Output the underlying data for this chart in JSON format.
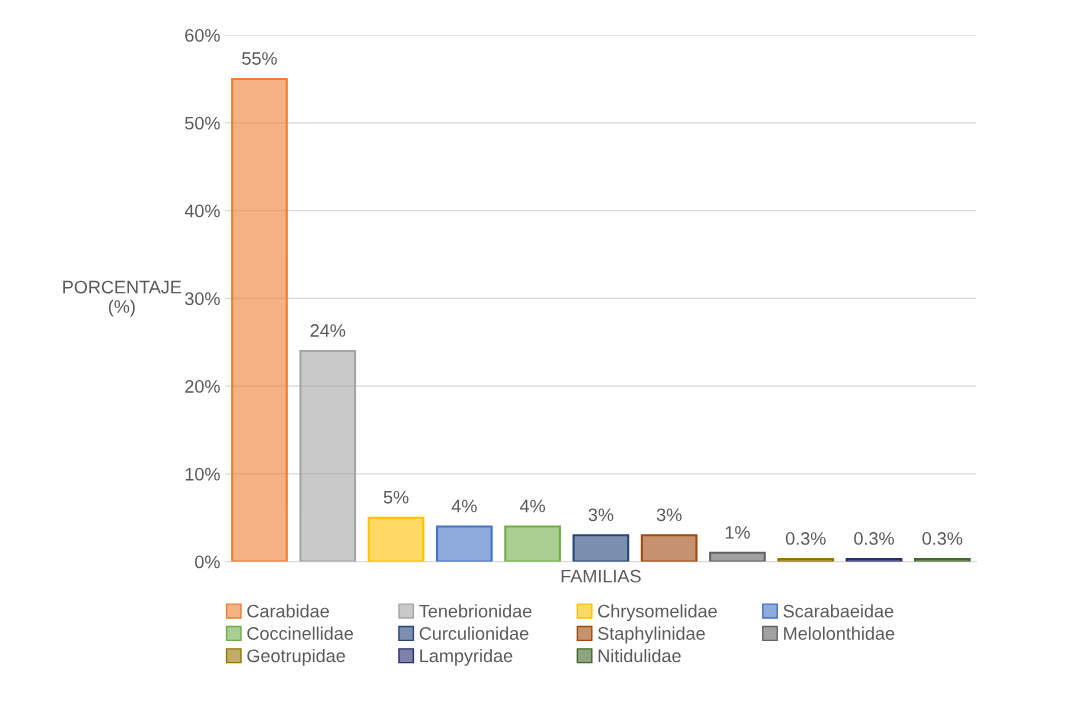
{
  "chart_data": {
    "type": "bar",
    "xlabel": "FAMILIAS",
    "ylabel": "PORCENTAJE\n(%)",
    "categories": [
      null,
      null,
      null,
      null,
      null,
      null,
      null,
      null,
      null,
      null,
      null
    ],
    "series": [
      {
        "name": "Carabidae",
        "color": "#ed7d31",
        "values": [
          55,
          null,
          null,
          null,
          null,
          null,
          null,
          null,
          null,
          null,
          null
        ]
      },
      {
        "name": "Tenebrionidae",
        "color": "#a5a5a5",
        "values": [
          null,
          24,
          null,
          null,
          null,
          null,
          null,
          null,
          null,
          null,
          null
        ]
      },
      {
        "name": "Chrysomelidae",
        "color": "#ffc000",
        "values": [
          null,
          null,
          5,
          null,
          null,
          null,
          null,
          null,
          null,
          null,
          null
        ]
      },
      {
        "name": "Scarabaeidae",
        "color": "#4472c4",
        "values": [
          null,
          null,
          null,
          4,
          null,
          null,
          null,
          null,
          null,
          null,
          null
        ]
      },
      {
        "name": "Coccinellidae",
        "color": "#70ad47",
        "values": [
          null,
          null,
          null,
          null,
          4,
          null,
          null,
          null,
          null,
          null,
          null
        ]
      },
      {
        "name": "Curculionidae",
        "color": "#264478",
        "values": [
          null,
          null,
          null,
          null,
          null,
          3,
          null,
          null,
          null,
          null,
          null
        ]
      },
      {
        "name": "Staphylinidae",
        "color": "#9e480e",
        "values": [
          null,
          null,
          null,
          null,
          null,
          null,
          3,
          null,
          null,
          null,
          null
        ]
      },
      {
        "name": "Melolonthidae",
        "color": "#636363",
        "values": [
          null,
          null,
          null,
          null,
          null,
          null,
          null,
          1,
          null,
          null,
          null
        ]
      },
      {
        "name": "Geotrupidae",
        "color": "#997300",
        "values": [
          null,
          null,
          null,
          null,
          null,
          null,
          null,
          null,
          0.3,
          null,
          null
        ]
      },
      {
        "name": "Lampyridae",
        "color": "#262f6e",
        "values": [
          null,
          null,
          null,
          null,
          null,
          null,
          null,
          null,
          null,
          0.3,
          null
        ]
      },
      {
        "name": "Nitidulidae",
        "color": "#43682b",
        "values": [
          null,
          null,
          null,
          null,
          null,
          null,
          null,
          null,
          null,
          null,
          0.3
        ]
      }
    ],
    "value_labels": [
      "55%",
      "24%",
      "5%",
      "4%",
      "4%",
      "3%",
      "3%",
      "1%",
      "0.3%",
      "0.3%",
      "0.3%"
    ],
    "ylim": [
      0,
      60
    ],
    "yticks": [
      {
        "value": 0,
        "label": "0%"
      },
      {
        "value": 10,
        "label": "10%"
      },
      {
        "value": 20,
        "label": "20%"
      },
      {
        "value": 30,
        "label": "30%"
      },
      {
        "value": 40,
        "label": "40%"
      },
      {
        "value": 50,
        "label": "50%"
      },
      {
        "value": 60,
        "label": "60%"
      }
    ],
    "grid": "y",
    "legend": "bottom",
    "tick_labels": "y"
  }
}
